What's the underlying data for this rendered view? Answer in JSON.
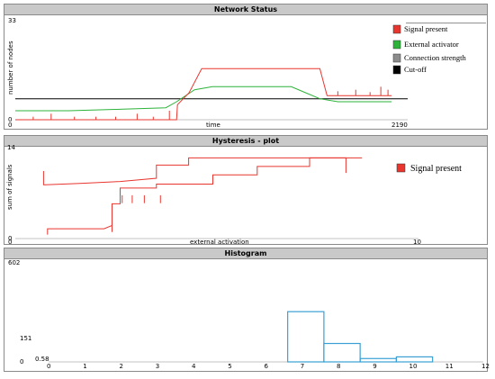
{
  "chart_data": [
    {
      "type": "line",
      "title": "Network Status",
      "xlabel": "time",
      "ylabel": "number of nodes",
      "xlim": [
        0,
        2190
      ],
      "ylim": [
        0,
        33
      ],
      "x_ticks": [
        "0",
        "2190"
      ],
      "y_ticks": [
        "0",
        "33"
      ],
      "legend_position": "right",
      "series": [
        {
          "name": "Signal present",
          "color": "#e8362f",
          "x": [
            0,
            900,
            905,
            970,
            1040,
            1060,
            1100,
            1140,
            1180,
            1220,
            1260,
            1300,
            1340,
            1380,
            1420,
            1460,
            1500,
            1540,
            1580,
            1620,
            1660,
            1700,
            1740,
            1780,
            1820,
            1860,
            1900,
            1940,
            1980,
            2020,
            2070,
            2100
          ],
          "y": [
            0,
            0,
            5,
            9,
            17,
            17,
            17,
            17,
            17,
            17,
            17,
            17,
            17,
            17,
            17,
            17,
            17,
            17,
            17,
            17,
            17,
            17,
            8,
            8,
            8,
            8,
            8,
            8,
            8,
            8,
            8,
            8
          ]
        },
        {
          "name": "External activator",
          "color": "#2db33a",
          "x": [
            0,
            300,
            600,
            840,
            900,
            1000,
            1100,
            1300,
            1540,
            1620,
            1700,
            1800,
            2100
          ],
          "y": [
            3,
            3,
            3.5,
            4,
            6,
            10,
            11,
            11,
            11,
            9,
            7,
            6,
            6
          ]
        },
        {
          "name": "Connection strength",
          "color": "#8c8c8c",
          "x": [
            0,
            2190
          ],
          "y": [
            32.2,
            32.2
          ]
        },
        {
          "name": "Cut-off",
          "color": "#000000",
          "x": [
            0,
            2190
          ],
          "y": [
            7,
            7
          ]
        }
      ]
    },
    {
      "type": "line",
      "title": "Hysteresis - plot",
      "xlabel": "external activation",
      "ylabel": "sum of signals",
      "xlim": [
        0,
        10
      ],
      "ylim": [
        0,
        14
      ],
      "x_ticks": [
        "0",
        "10"
      ],
      "y_ticks": [
        "0",
        "14"
      ],
      "legend_position": "right",
      "series": [
        {
          "name": "Signal present",
          "color": "#e8362f",
          "x": [
            0.8,
            0.8,
            2.2,
            2.4,
            2.4,
            2.6,
            2.6,
            3.5,
            3.5,
            4.9,
            4.9,
            6.0,
            6.0,
            7.3,
            7.3,
            8.6,
            8.6
          ],
          "y": [
            0.6,
            1.5,
            1.5,
            2,
            5.3,
            5.3,
            7.7,
            7.7,
            8.3,
            8.3,
            9.7,
            9.7,
            11,
            11,
            12.3,
            12.3,
            12.3
          ]
        },
        {
          "name": "",
          "color": "#e8362f",
          "x": [
            0.7,
            0.7,
            0.75,
            1.6,
            2.6,
            3.5,
            3.5,
            4.3,
            4.3,
            5.6,
            8.2,
            8.2
          ],
          "y": [
            10.3,
            8.2,
            8.2,
            8.4,
            8.7,
            9.2,
            11.2,
            11.2,
            12.3,
            12.3,
            12.3,
            10
          ]
        }
      ]
    },
    {
      "type": "bar",
      "title": "Histogram",
      "xlim": [
        0,
        12
      ],
      "ylim": [
        0,
        602
      ],
      "x_ticks": [
        "0",
        "1",
        "2",
        "3",
        "4",
        "5",
        "6",
        "7",
        "8",
        "9",
        "10",
        "11",
        "12"
      ],
      "y_ticks": [
        "0",
        "151",
        "602"
      ],
      "annotation": "0.58",
      "bar_color": "#3aa0d4",
      "bins": [
        {
          "x0": 6.6,
          "x1": 7.6,
          "value": 300
        },
        {
          "x0": 7.6,
          "x1": 8.6,
          "value": 110
        },
        {
          "x0": 8.6,
          "x1": 9.6,
          "value": 20
        },
        {
          "x0": 9.6,
          "x1": 10.6,
          "value": 30
        }
      ]
    }
  ]
}
